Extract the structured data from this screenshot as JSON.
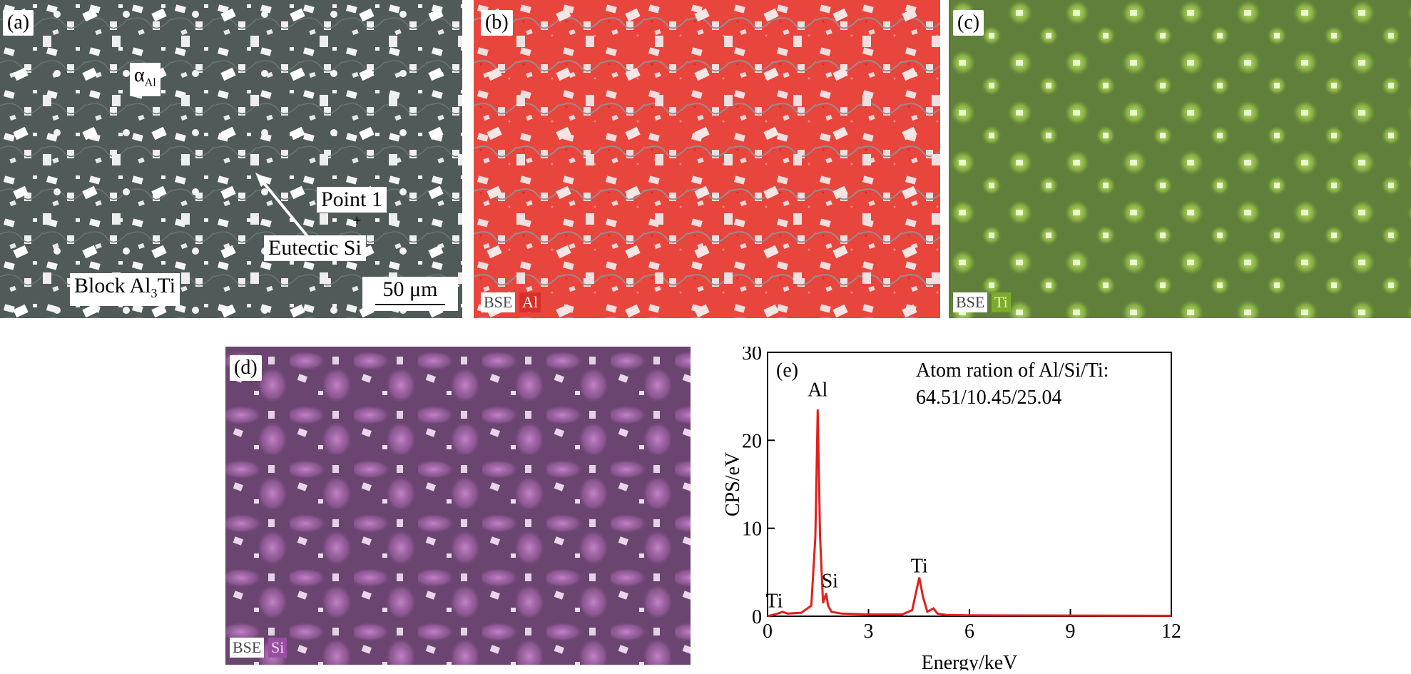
{
  "panels": {
    "a": {
      "label": "(a)",
      "alpha_symbol": "α",
      "alpha_subscript": "Al",
      "point_label": "Point 1",
      "eutectic_label": "Eutectic Si",
      "block_label_prefix": "Block Al",
      "block_label_sub": "3",
      "block_label_suffix": "Ti",
      "scale_bar": "50 μm"
    },
    "b": {
      "label": "(b)",
      "tag_bse": "BSE",
      "tag_element": "Al"
    },
    "c": {
      "label": "(c)",
      "tag_bse": "BSE",
      "tag_element": "Ti"
    },
    "d": {
      "label": "(d)",
      "tag_bse": "BSE",
      "tag_element": "Si"
    },
    "e": {
      "label": "(e)"
    }
  },
  "colors": {
    "sem_bg": "#4f5a59",
    "al_map": "#e8453d",
    "ti_map": "#6f9a3a",
    "si_map": "#7b4a7e",
    "spectrum": "#e0201c"
  },
  "chart_data": {
    "type": "line",
    "xlabel": "Energy/keV",
    "ylabel": "CPS/eV",
    "xlim": [
      0,
      12
    ],
    "ylim": [
      0,
      30
    ],
    "xticks": [
      0,
      3,
      6,
      9,
      12
    ],
    "yticks": [
      0,
      10,
      20,
      30
    ],
    "annotation_line1": "Atom ration of Al/Si/Ti:",
    "annotation_line2": "64.51/10.45/25.04",
    "series": [
      {
        "x": [
          0,
          0.3,
          0.45,
          0.6,
          1.0,
          1.3,
          1.42,
          1.49,
          1.56,
          1.65,
          1.74,
          1.8,
          1.9,
          2.2,
          3.0,
          4.0,
          4.3,
          4.4,
          4.51,
          4.62,
          4.75,
          4.93,
          5.05,
          5.3,
          6.0,
          12.0
        ],
        "y": [
          0,
          0.3,
          0.5,
          0.3,
          0.4,
          1.2,
          9.0,
          23.5,
          9.0,
          1.5,
          2.6,
          1.2,
          0.5,
          0.3,
          0.2,
          0.2,
          0.7,
          2.5,
          4.4,
          2.2,
          0.5,
          0.9,
          0.3,
          0.15,
          0.1,
          0.05
        ]
      }
    ],
    "peak_labels": [
      {
        "text": "Ti",
        "x": 0.2,
        "y": 1.0
      },
      {
        "text": "Al",
        "x": 1.49,
        "y": 25.0
      },
      {
        "text": "Si",
        "x": 1.85,
        "y": 3.3
      },
      {
        "text": "Ti",
        "x": 4.51,
        "y": 5.0
      }
    ]
  }
}
